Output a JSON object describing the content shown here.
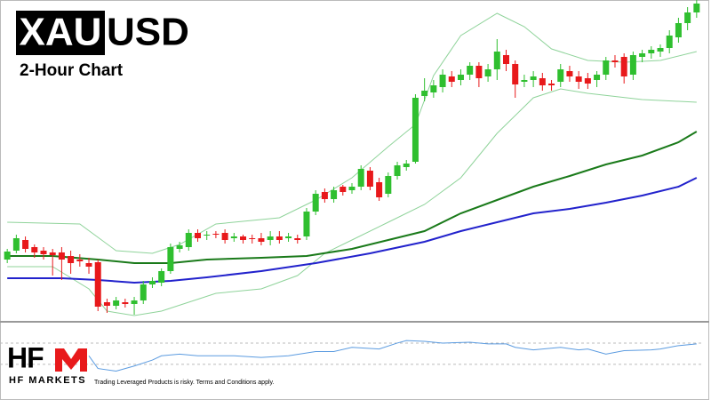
{
  "header": {
    "symbol_highlight": "XAU",
    "symbol_rest": "USD",
    "subtitle": "2-Hour Chart"
  },
  "footer": {
    "logo": "HF",
    "brand": "HF MARKETS",
    "disclaimer": "Trading Leveraged Products is risky. Terms and Conditions apply."
  },
  "chart_data": [
    {
      "type": "candlestick",
      "up_color": "#2fbf2f",
      "down_color": "#e8191b",
      "xlim": [
        -0.8,
        76.8
      ],
      "ylim": [
        0,
        360
      ],
      "ohlc": [
        [
          68,
          80,
          64,
          77
        ],
        [
          78,
          96,
          75,
          92
        ],
        [
          90,
          94,
          76,
          80
        ],
        [
          82,
          85,
          70,
          76
        ],
        [
          78,
          82,
          68,
          74
        ],
        [
          76,
          80,
          50,
          73
        ],
        [
          76,
          82,
          45,
          68
        ],
        [
          72,
          78,
          52,
          64
        ],
        [
          68,
          74,
          60,
          66
        ],
        [
          64,
          70,
          52,
          60
        ],
        [
          65,
          68,
          10,
          15
        ],
        [
          20,
          24,
          8,
          16
        ],
        [
          16,
          26,
          12,
          22
        ],
        [
          20,
          24,
          14,
          18
        ],
        [
          18,
          26,
          6,
          22
        ],
        [
          22,
          44,
          18,
          40
        ],
        [
          40,
          48,
          36,
          44
        ],
        [
          42,
          58,
          38,
          55
        ],
        [
          55,
          86,
          52,
          82
        ],
        [
          80,
          88,
          76,
          84
        ],
        [
          82,
          102,
          78,
          98
        ],
        [
          98,
          102,
          88,
          92
        ],
        [
          95,
          100,
          90,
          96
        ],
        [
          97,
          100,
          92,
          96
        ],
        [
          98,
          102,
          86,
          90
        ],
        [
          92,
          98,
          88,
          94
        ],
        [
          94,
          96,
          86,
          90
        ],
        [
          92,
          96,
          86,
          91
        ],
        [
          92,
          98,
          84,
          88
        ],
        [
          90,
          100,
          84,
          94
        ],
        [
          94,
          100,
          86,
          90
        ],
        [
          92,
          98,
          88,
          94
        ],
        [
          92,
          96,
          86,
          90
        ],
        [
          94,
          126,
          90,
          122
        ],
        [
          122,
          146,
          118,
          142
        ],
        [
          144,
          148,
          132,
          136
        ],
        [
          136,
          150,
          132,
          146
        ],
        [
          150,
          152,
          140,
          144
        ],
        [
          146,
          154,
          142,
          150
        ],
        [
          150,
          174,
          146,
          170
        ],
        [
          168,
          172,
          146,
          150
        ],
        [
          155,
          160,
          134,
          138
        ],
        [
          142,
          166,
          138,
          162
        ],
        [
          162,
          178,
          158,
          174
        ],
        [
          172,
          180,
          168,
          176
        ],
        [
          178,
          254,
          176,
          250
        ],
        [
          252,
          272,
          246,
          258
        ],
        [
          256,
          270,
          250,
          264
        ],
        [
          262,
          282,
          256,
          276
        ],
        [
          274,
          280,
          262,
          268
        ],
        [
          270,
          282,
          264,
          276
        ],
        [
          276,
          290,
          270,
          286
        ],
        [
          286,
          290,
          262,
          272
        ],
        [
          274,
          288,
          268,
          282
        ],
        [
          282,
          316,
          270,
          302
        ],
        [
          298,
          304,
          280,
          288
        ],
        [
          288,
          292,
          250,
          265
        ],
        [
          268,
          276,
          262,
          270
        ],
        [
          270,
          280,
          262,
          274
        ],
        [
          272,
          278,
          258,
          264
        ],
        [
          266,
          270,
          258,
          264
        ],
        [
          268,
          288,
          262,
          282
        ],
        [
          280,
          286,
          268,
          274
        ],
        [
          274,
          280,
          260,
          268
        ],
        [
          272,
          278,
          260,
          266
        ],
        [
          270,
          280,
          262,
          276
        ],
        [
          276,
          296,
          270,
          292
        ],
        [
          292,
          298,
          284,
          290
        ],
        [
          296,
          300,
          266,
          274
        ],
        [
          276,
          302,
          270,
          298
        ],
        [
          296,
          304,
          290,
          300
        ],
        [
          300,
          308,
          294,
          304
        ],
        [
          302,
          310,
          296,
          306
        ],
        [
          306,
          326,
          300,
          320
        ],
        [
          318,
          340,
          312,
          334
        ],
        [
          334,
          352,
          326,
          346
        ],
        [
          346,
          360,
          340,
          356
        ]
      ],
      "lines": [
        {
          "color": "#8fd39a",
          "x": [
            0,
            8,
            12,
            16,
            19,
            23,
            30,
            34,
            38,
            42,
            45,
            47,
            50,
            54,
            57,
            60,
            64,
            68,
            72,
            76
          ],
          "values": [
            110,
            108,
            78,
            75,
            85,
            108,
            115,
            135,
            160,
            195,
            220,
            275,
            320,
            345,
            330,
            305,
            292,
            290,
            292,
            302
          ]
        },
        {
          "color": "#8fd39a",
          "x": [
            0,
            5,
            9,
            11,
            14,
            17,
            20,
            23,
            28,
            32,
            35,
            38,
            42,
            46,
            50,
            54,
            58,
            61,
            64,
            70,
            76
          ],
          "values": [
            60,
            60,
            35,
            10,
            5,
            10,
            20,
            30,
            35,
            50,
            75,
            90,
            110,
            130,
            160,
            210,
            250,
            260,
            255,
            248,
            245
          ]
        },
        {
          "color": "#1a7a1a",
          "x": [
            0,
            5,
            10,
            14,
            18,
            22,
            28,
            33,
            38,
            42,
            46,
            50,
            54,
            58,
            62,
            66,
            70,
            74,
            76
          ],
          "values": [
            72,
            72,
            68,
            64,
            64,
            68,
            70,
            72,
            80,
            90,
            100,
            120,
            135,
            150,
            162,
            175,
            185,
            200,
            212
          ]
        },
        {
          "color": "#2222cc",
          "x": [
            0,
            6,
            10,
            14,
            18,
            22,
            28,
            34,
            40,
            46,
            50,
            54,
            58,
            62,
            66,
            70,
            74,
            76
          ],
          "values": [
            47,
            47,
            45,
            42,
            44,
            48,
            55,
            64,
            75,
            88,
            100,
            110,
            120,
            125,
            132,
            140,
            150,
            160
          ]
        }
      ]
    },
    {
      "type": "line",
      "color": "#5b9be0",
      "level_color": "#bbbbbb",
      "xlim": [
        -0.8,
        76.8
      ],
      "ylim": [
        0,
        88
      ],
      "levels": [
        65,
        40
      ],
      "x": [
        9,
        10,
        12,
        14,
        16,
        17,
        19,
        21,
        25,
        28,
        31,
        34,
        36,
        38,
        41,
        43,
        44,
        46,
        48,
        51,
        53,
        55,
        56,
        58,
        61,
        63,
        64,
        66,
        68,
        71,
        72,
        74,
        76
      ],
      "values": [
        50,
        35,
        32,
        38,
        45,
        50,
        52,
        50,
        50,
        48,
        50,
        55,
        55,
        60,
        58,
        65,
        68,
        67,
        65,
        66,
        64,
        64,
        60,
        57,
        60,
        57,
        58,
        52,
        56,
        57,
        58,
        62,
        64
      ]
    }
  ]
}
